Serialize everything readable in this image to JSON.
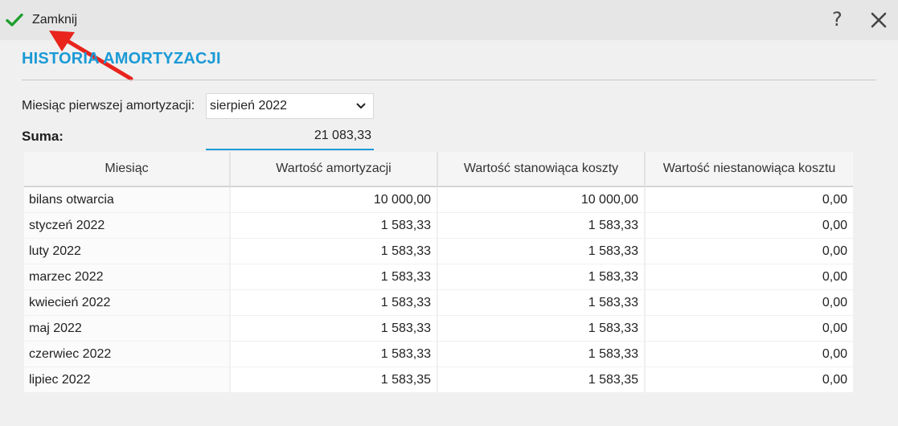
{
  "toolbar": {
    "close_label": "Zamknij",
    "help_glyph": "?",
    "icons": {
      "close_action": "check-icon",
      "help": "help-icon",
      "close_window": "close-icon"
    },
    "colors": {
      "check": "#1e9e2e",
      "annotation_arrow": "#e8241d"
    }
  },
  "page": {
    "title": "HISTORIA AMORTYZACJI",
    "title_color": "#1b9ad6"
  },
  "form": {
    "month_label": "Miesiąc pierwszej amortyzacji:",
    "month_value": "sierpień 2022",
    "sum_label": "Suma:",
    "sum_value": "21 083,33"
  },
  "table": {
    "columns": [
      "Miesiąc",
      "Wartość amortyzacji",
      "Wartość stanowiąca koszty",
      "Wartość niestanowiąca kosztu"
    ],
    "rows": [
      [
        "bilans otwarcia",
        "10 000,00",
        "10 000,00",
        "0,00"
      ],
      [
        "styczeń 2022",
        "1 583,33",
        "1 583,33",
        "0,00"
      ],
      [
        "luty 2022",
        "1 583,33",
        "1 583,33",
        "0,00"
      ],
      [
        "marzec 2022",
        "1 583,33",
        "1 583,33",
        "0,00"
      ],
      [
        "kwiecień 2022",
        "1 583,33",
        "1 583,33",
        "0,00"
      ],
      [
        "maj 2022",
        "1 583,33",
        "1 583,33",
        "0,00"
      ],
      [
        "czerwiec 2022",
        "1 583,33",
        "1 583,33",
        "0,00"
      ],
      [
        "lipiec 2022",
        "1 583,35",
        "1 583,35",
        "0,00"
      ]
    ]
  }
}
